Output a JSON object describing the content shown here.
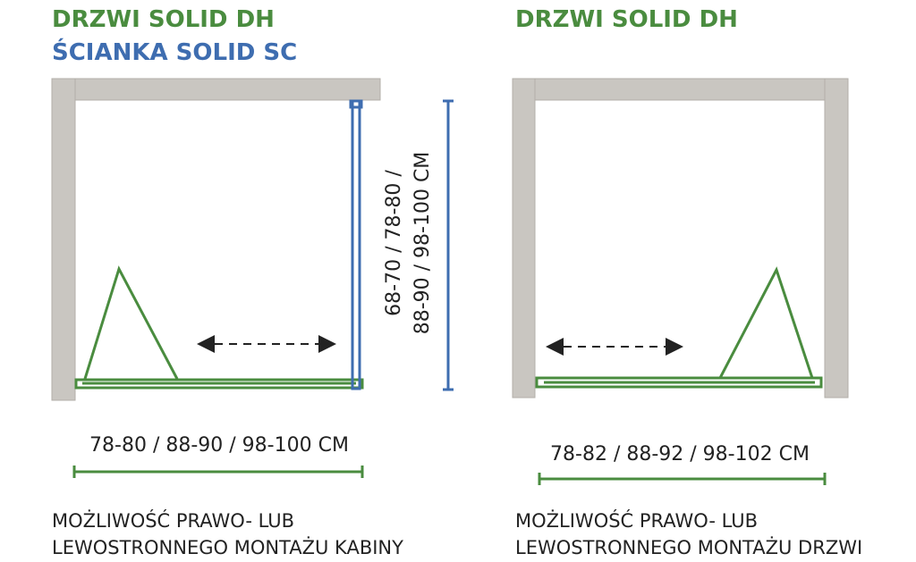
{
  "left": {
    "title1": "DRZWI SOLID DH",
    "title2": "ŚCIANKA SOLID SC",
    "height_dim": [
      "68-70 / 78-80 /",
      "88-90 / 98-100  CM"
    ],
    "width_dim": "78-80 / 88-90 / 98-100 CM",
    "note": [
      "MOŻLIWOŚĆ PRAWO- LUB",
      "LEWOSTRONNEGO MONTAŻU KABINY"
    ]
  },
  "right": {
    "title": "DRZWI SOLID DH",
    "width_dim": "78-82 / 88-92 / 98-102 CM",
    "note": [
      "MOŻLIWOŚĆ PRAWO- LUB",
      "LEWOSTRONNEGO MONTAŻU DRZWI"
    ]
  }
}
